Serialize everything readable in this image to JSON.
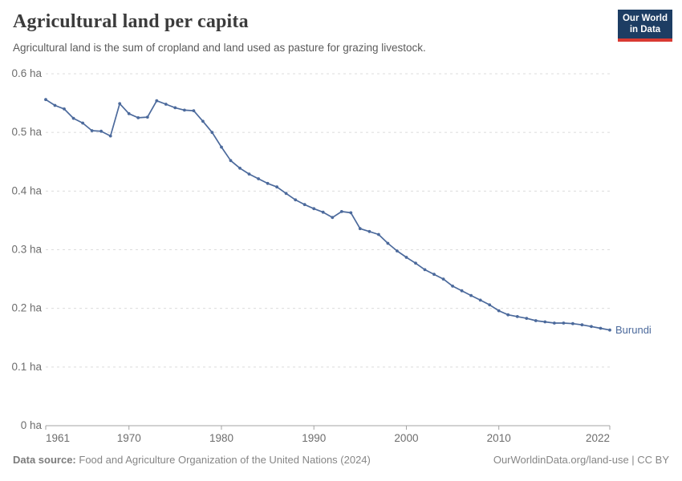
{
  "header": {
    "title": "Agricultural land per capita",
    "subtitle": "Agricultural land is the sum of cropland and land used as pasture for grazing livestock.",
    "logo_line1": "Our World",
    "logo_line2": "in Data",
    "logo_bg_color": "#1d3d63",
    "logo_accent_color": "#d93a32"
  },
  "chart_data": {
    "type": "line",
    "title": "Agricultural land per capita",
    "subtitle": "Agricultural land is the sum of cropland and land used as pasture for grazing livestock.",
    "unit": "ha",
    "ylabel": "",
    "xlabel": "",
    "ylim": [
      0,
      0.6
    ],
    "yticks": [
      0,
      0.1,
      0.2,
      0.3,
      0.4,
      0.5,
      0.6
    ],
    "ytick_suffix": " ha",
    "xticks": [
      1961,
      1970,
      1980,
      1990,
      2000,
      2010,
      2022
    ],
    "grid": "horizontal-dashed",
    "legend_position": "end-of-line",
    "x": [
      1961,
      1962,
      1963,
      1964,
      1965,
      1966,
      1967,
      1968,
      1969,
      1970,
      1971,
      1972,
      1973,
      1974,
      1975,
      1976,
      1977,
      1978,
      1979,
      1980,
      1981,
      1982,
      1983,
      1984,
      1985,
      1986,
      1987,
      1988,
      1989,
      1990,
      1991,
      1992,
      1993,
      1994,
      1995,
      1996,
      1997,
      1998,
      1999,
      2000,
      2001,
      2002,
      2003,
      2004,
      2005,
      2006,
      2007,
      2008,
      2009,
      2010,
      2011,
      2012,
      2013,
      2014,
      2015,
      2016,
      2017,
      2018,
      2019,
      2020,
      2021,
      2022
    ],
    "series": [
      {
        "name": "Burundi",
        "color": "#4c6a9c",
        "values": [
          0.556,
          0.546,
          0.54,
          0.524,
          0.516,
          0.503,
          0.502,
          0.494,
          0.549,
          0.532,
          0.525,
          0.526,
          0.554,
          0.548,
          0.542,
          0.538,
          0.537,
          0.519,
          0.5,
          0.475,
          0.452,
          0.439,
          0.429,
          0.421,
          0.413,
          0.407,
          0.396,
          0.385,
          0.377,
          0.37,
          0.364,
          0.355,
          0.365,
          0.363,
          0.336,
          0.331,
          0.326,
          0.311,
          0.298,
          0.287,
          0.277,
          0.266,
          0.258,
          0.25,
          0.238,
          0.23,
          0.222,
          0.214,
          0.206,
          0.196,
          0.189,
          0.186,
          0.183,
          0.179,
          0.177,
          0.175,
          0.175,
          0.174,
          0.172,
          0.169,
          0.166,
          0.163
        ]
      }
    ]
  },
  "footer": {
    "datasource_label": "Data source:",
    "datasource_text": "Food and Agriculture Organization of the United Nations (2024)",
    "credit": "OurWorldinData.org/land-use | CC BY"
  }
}
